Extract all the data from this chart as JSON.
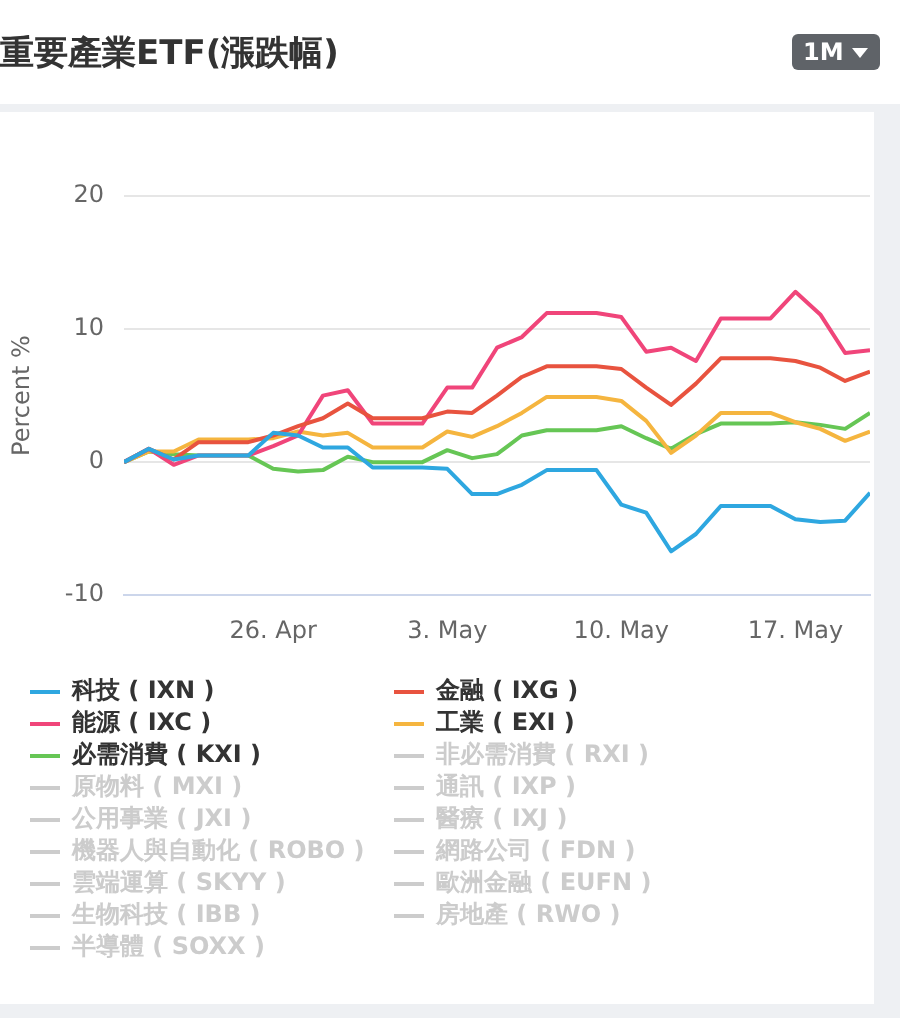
{
  "chart_data": {
    "type": "line",
    "title": "重要產業ETF(漲跌幅)",
    "ylabel": "Percent %",
    "x": [
      "--04-20",
      "--04-21",
      "--04-22",
      "--04-23",
      "--04-24",
      "--04-25",
      "--04-26",
      "--04-27",
      "--04-28",
      "--04-29",
      "--04-30",
      "--05-01",
      "--05-02",
      "--05-03",
      "--05-04",
      "--05-05",
      "--05-06",
      "--05-07",
      "--05-08",
      "--05-09",
      "--05-10",
      "--05-11",
      "--05-12",
      "--05-13",
      "--05-14",
      "--05-15",
      "--05-16",
      "--05-17",
      "--05-18",
      "--05-19",
      "--05-20"
    ],
    "xlim": [
      "--04-20",
      "--05-20"
    ],
    "xticks": [
      {
        "value": "--04-26",
        "label": "26. Apr"
      },
      {
        "value": "--05-03",
        "label": "3. May"
      },
      {
        "value": "--05-10",
        "label": "10. May"
      },
      {
        "value": "--05-17",
        "label": "17. May"
      }
    ],
    "ylim": [
      -10,
      20
    ],
    "annotations": [
      "1M"
    ],
    "yticks": [
      -10,
      0,
      10,
      20
    ],
    "grid": "y",
    "legend": "bottom",
    "series": [
      {
        "name": "科技 ( IXN )",
        "color": "#2ea7e0",
        "values": [
          0,
          1.0,
          0.2,
          0.5,
          0.5,
          0.5,
          2.2,
          2.0,
          1.1,
          1.1,
          -0.4,
          -0.4,
          -0.4,
          -0.5,
          -2.4,
          -2.4,
          -1.7,
          -0.6,
          -0.6,
          -0.6,
          -3.2,
          -3.8,
          -6.7,
          -5.4,
          -3.3,
          -3.3,
          -3.3,
          -4.3,
          -4.5,
          -4.4,
          -2.3
        ]
      },
      {
        "name": "金融 ( IXG )",
        "color": "#e8533f",
        "values": [
          0,
          1.0,
          0.2,
          1.5,
          1.5,
          1.5,
          2.0,
          2.7,
          3.3,
          4.4,
          3.3,
          3.3,
          3.3,
          3.8,
          3.7,
          5.0,
          6.4,
          7.2,
          7.2,
          7.2,
          7.0,
          5.6,
          4.3,
          5.9,
          7.8,
          7.8,
          7.8,
          7.6,
          7.1,
          6.1,
          6.8
        ]
      },
      {
        "name": "能源 ( IXC )",
        "color": "#f0457a",
        "values": [
          0,
          1.0,
          -0.2,
          0.5,
          0.5,
          0.5,
          1.2,
          2.0,
          5.0,
          5.4,
          2.9,
          2.9,
          2.9,
          5.6,
          5.6,
          8.6,
          9.4,
          11.2,
          11.2,
          11.2,
          10.9,
          8.3,
          8.6,
          7.6,
          10.8,
          10.8,
          10.8,
          12.8,
          11.1,
          8.2,
          8.4
        ]
      },
      {
        "name": "工業 ( EXI )",
        "color": "#f5b53f",
        "values": [
          0,
          0.8,
          0.8,
          1.7,
          1.7,
          1.7,
          1.8,
          2.3,
          2.0,
          2.2,
          1.1,
          1.1,
          1.1,
          2.3,
          1.9,
          2.7,
          3.7,
          4.9,
          4.9,
          4.9,
          4.6,
          3.1,
          0.7,
          2.0,
          3.7,
          3.7,
          3.7,
          3.0,
          2.5,
          1.6,
          2.3
        ]
      },
      {
        "name": "必需消費 ( KXI )",
        "color": "#66c655",
        "values": [
          0,
          0.8,
          0.6,
          0.5,
          0.5,
          0.5,
          -0.5,
          -0.7,
          -0.6,
          0.4,
          0.0,
          0.0,
          0.0,
          0.9,
          0.3,
          0.6,
          2.0,
          2.4,
          2.4,
          2.4,
          2.7,
          1.8,
          1.0,
          2.1,
          2.9,
          2.9,
          2.9,
          3.0,
          2.8,
          2.5,
          3.7
        ]
      },
      {
        "name": "非必需消費 ( RXI )",
        "color": "#cccccc",
        "values": [
          null,
          null,
          null,
          null,
          null,
          null,
          null,
          null,
          null,
          null,
          null,
          null,
          null,
          null,
          null,
          null,
          null,
          null,
          null,
          null,
          null,
          null,
          null,
          null,
          null,
          null,
          null,
          null,
          null,
          null,
          null
        ]
      },
      {
        "name": "原物料 ( MXI )",
        "color": "#cccccc",
        "values": [
          null,
          null,
          null,
          null,
          null,
          null,
          null,
          null,
          null,
          null,
          null,
          null,
          null,
          null,
          null,
          null,
          null,
          null,
          null,
          null,
          null,
          null,
          null,
          null,
          null,
          null,
          null,
          null,
          null,
          null,
          null
        ]
      },
      {
        "name": "通訊 ( IXP )",
        "color": "#cccccc",
        "values": [
          null,
          null,
          null,
          null,
          null,
          null,
          null,
          null,
          null,
          null,
          null,
          null,
          null,
          null,
          null,
          null,
          null,
          null,
          null,
          null,
          null,
          null,
          null,
          null,
          null,
          null,
          null,
          null,
          null,
          null,
          null
        ]
      },
      {
        "name": "公用事業 ( JXI )",
        "color": "#cccccc",
        "values": [
          null,
          null,
          null,
          null,
          null,
          null,
          null,
          null,
          null,
          null,
          null,
          null,
          null,
          null,
          null,
          null,
          null,
          null,
          null,
          null,
          null,
          null,
          null,
          null,
          null,
          null,
          null,
          null,
          null,
          null,
          null
        ]
      },
      {
        "name": "醫療 ( IXJ )",
        "color": "#cccccc",
        "values": [
          null,
          null,
          null,
          null,
          null,
          null,
          null,
          null,
          null,
          null,
          null,
          null,
          null,
          null,
          null,
          null,
          null,
          null,
          null,
          null,
          null,
          null,
          null,
          null,
          null,
          null,
          null,
          null,
          null,
          null,
          null
        ]
      },
      {
        "name": "機器人與自動化 ( ROBO )",
        "color": "#cccccc",
        "values": [
          null,
          null,
          null,
          null,
          null,
          null,
          null,
          null,
          null,
          null,
          null,
          null,
          null,
          null,
          null,
          null,
          null,
          null,
          null,
          null,
          null,
          null,
          null,
          null,
          null,
          null,
          null,
          null,
          null,
          null,
          null
        ]
      },
      {
        "name": "網路公司 ( FDN )",
        "color": "#cccccc",
        "values": [
          null,
          null,
          null,
          null,
          null,
          null,
          null,
          null,
          null,
          null,
          null,
          null,
          null,
          null,
          null,
          null,
          null,
          null,
          null,
          null,
          null,
          null,
          null,
          null,
          null,
          null,
          null,
          null,
          null,
          null,
          null
        ]
      },
      {
        "name": "雲端運算 ( SKYY )",
        "color": "#cccccc",
        "values": [
          null,
          null,
          null,
          null,
          null,
          null,
          null,
          null,
          null,
          null,
          null,
          null,
          null,
          null,
          null,
          null,
          null,
          null,
          null,
          null,
          null,
          null,
          null,
          null,
          null,
          null,
          null,
          null,
          null,
          null,
          null
        ]
      },
      {
        "name": "歐洲金融 ( EUFN )",
        "color": "#cccccc",
        "values": [
          null,
          null,
          null,
          null,
          null,
          null,
          null,
          null,
          null,
          null,
          null,
          null,
          null,
          null,
          null,
          null,
          null,
          null,
          null,
          null,
          null,
          null,
          null,
          null,
          null,
          null,
          null,
          null,
          null,
          null,
          null
        ]
      },
      {
        "name": "生物科技 ( IBB )",
        "color": "#cccccc",
        "values": [
          null,
          null,
          null,
          null,
          null,
          null,
          null,
          null,
          null,
          null,
          null,
          null,
          null,
          null,
          null,
          null,
          null,
          null,
          null,
          null,
          null,
          null,
          null,
          null,
          null,
          null,
          null,
          null,
          null,
          null,
          null
        ]
      },
      {
        "name": "房地產 ( RWO )",
        "color": "#cccccc",
        "values": [
          null,
          null,
          null,
          null,
          null,
          null,
          null,
          null,
          null,
          null,
          null,
          null,
          null,
          null,
          null,
          null,
          null,
          null,
          null,
          null,
          null,
          null,
          null,
          null,
          null,
          null,
          null,
          null,
          null,
          null,
          null
        ]
      },
      {
        "name": "半導體 ( SOXX )",
        "color": "#cccccc",
        "values": [
          null,
          null,
          null,
          null,
          null,
          null,
          null,
          null,
          null,
          null,
          null,
          null,
          null,
          null,
          null,
          null,
          null,
          null,
          null,
          null,
          null,
          null,
          null,
          null,
          null,
          null,
          null,
          null,
          null,
          null,
          null
        ]
      }
    ]
  }
}
